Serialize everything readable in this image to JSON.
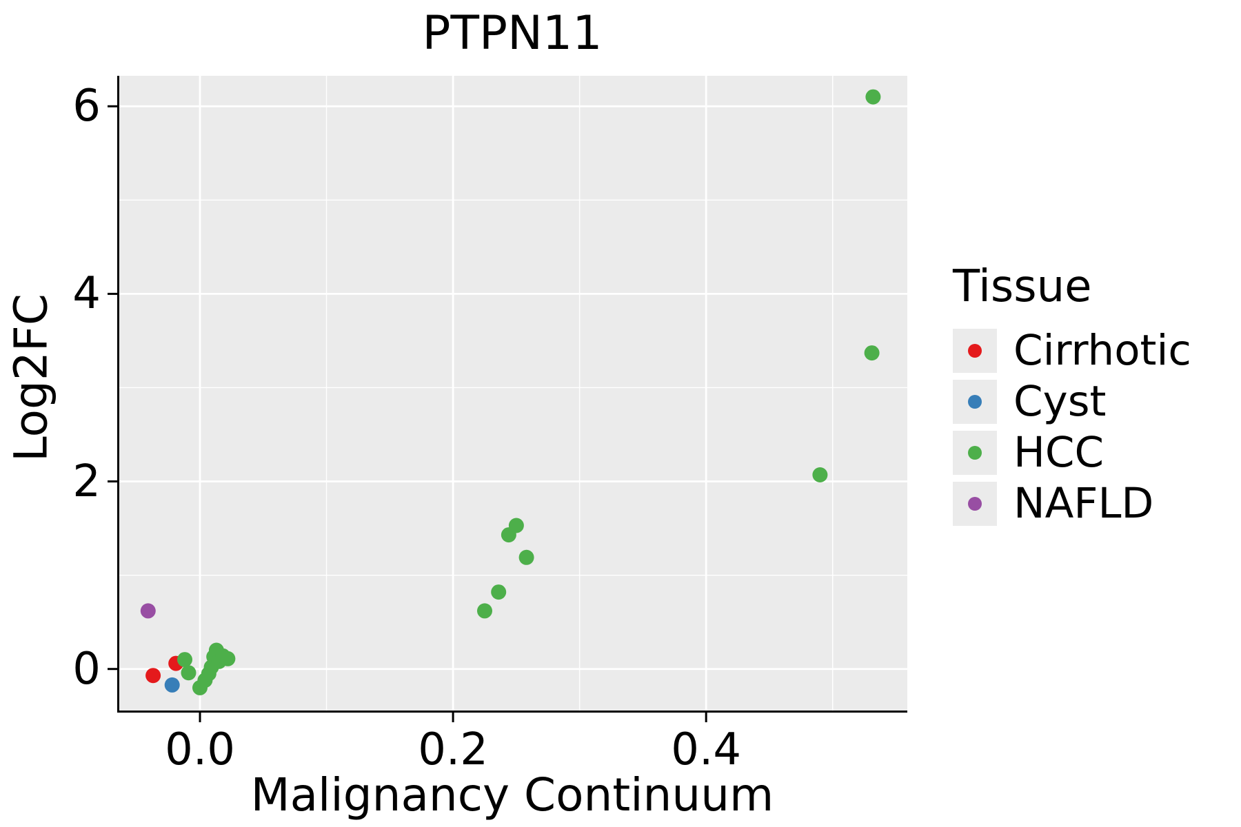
{
  "chart_data": {
    "type": "scatter",
    "title": "PTPN11",
    "xlabel": "Malignancy Continuum",
    "ylabel": "Log2FC",
    "legend_title": "Tissue",
    "legend_position": "right",
    "xlim": [
      -0.0654,
      0.559
    ],
    "ylim": [
      -0.465,
      6.325
    ],
    "x_ticks": [
      0.0,
      0.2,
      0.4
    ],
    "x_tick_labels": [
      "0.0",
      "0.2",
      "0.4"
    ],
    "x_minor_ticks": [
      0.1,
      0.3,
      0.5
    ],
    "y_ticks": [
      0,
      2,
      4,
      6
    ],
    "y_tick_labels": [
      "0",
      "2",
      "4",
      "6"
    ],
    "y_minor_ticks": [
      1,
      3,
      5
    ],
    "grid": true,
    "panel_background": "#ebebeb",
    "grid_color": "#ffffff",
    "axis_color": "#000000",
    "series": [
      {
        "name": "Cirrhotic",
        "color": "#e41a1c",
        "points": [
          [
            -0.037,
            -0.07
          ],
          [
            -0.019,
            0.06
          ]
        ]
      },
      {
        "name": "Cyst",
        "color": "#377eb8",
        "points": [
          [
            -0.022,
            -0.17
          ]
        ]
      },
      {
        "name": "HCC",
        "color": "#4daf4a",
        "points": [
          [
            -0.012,
            0.1
          ],
          [
            -0.009,
            -0.04
          ],
          [
            0.0,
            -0.2
          ],
          [
            0.004,
            -0.12
          ],
          [
            0.007,
            -0.05
          ],
          [
            0.009,
            0.02
          ],
          [
            0.011,
            0.13
          ],
          [
            0.013,
            0.2
          ],
          [
            0.015,
            0.08
          ],
          [
            0.018,
            0.14
          ],
          [
            0.022,
            0.11
          ],
          [
            0.225,
            0.62
          ],
          [
            0.236,
            0.82
          ],
          [
            0.244,
            1.43
          ],
          [
            0.25,
            1.53
          ],
          [
            0.258,
            1.19
          ],
          [
            0.49,
            2.07
          ],
          [
            0.531,
            3.37
          ],
          [
            0.532,
            6.1
          ]
        ]
      },
      {
        "name": "NAFLD",
        "color": "#984ea3",
        "points": [
          [
            -0.041,
            0.62
          ]
        ]
      }
    ]
  }
}
